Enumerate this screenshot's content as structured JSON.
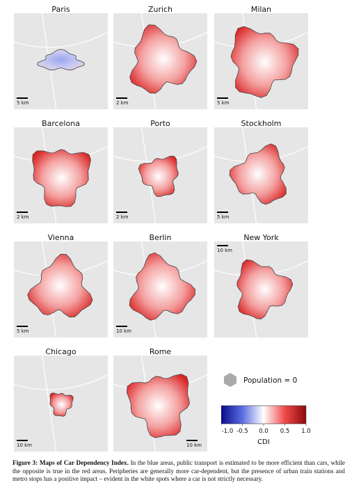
{
  "figure": {
    "panels": [
      {
        "city": "Paris",
        "scale": "5 km"
      },
      {
        "city": "Zurich",
        "scale": "2 km"
      },
      {
        "city": "Milan",
        "scale": "5 km"
      },
      {
        "city": "Barcelona",
        "scale": "2 km"
      },
      {
        "city": "Porto",
        "scale": "2 km"
      },
      {
        "city": "Stockholm",
        "scale": "5 km"
      },
      {
        "city": "Vienna",
        "scale": "5 km"
      },
      {
        "city": "Berlin",
        "scale": "10 km"
      },
      {
        "city": "New York",
        "scale": "10 km"
      },
      {
        "city": "Chicago",
        "scale": "10 km"
      },
      {
        "city": "Rome",
        "scale": "10 km"
      }
    ],
    "legend": {
      "label": "Population = 0"
    },
    "colorbar": {
      "lim": [
        -1,
        1
      ],
      "ticks": [
        {
          "value": -1,
          "label": "-1.0"
        },
        {
          "value": -0.5,
          "label": "-0.5"
        },
        {
          "value": 0,
          "label": "0.0"
        },
        {
          "value": 0.5,
          "label": "0.5"
        },
        {
          "value": 1,
          "label": "1.0"
        }
      ],
      "label": "CDI"
    },
    "caption": {
      "label": "Figure 3:",
      "title": "Maps of Car Dependency Index.",
      "text": "In the blue areas, public transport is estimated to be more efficient than cars, while the opposite is true in the red areas. Peripheries are generally more car-dependent, but the presence of urban train stations and metro stops has a positive impact – evident in the white spots where a car is not strictly necessary."
    }
  }
}
